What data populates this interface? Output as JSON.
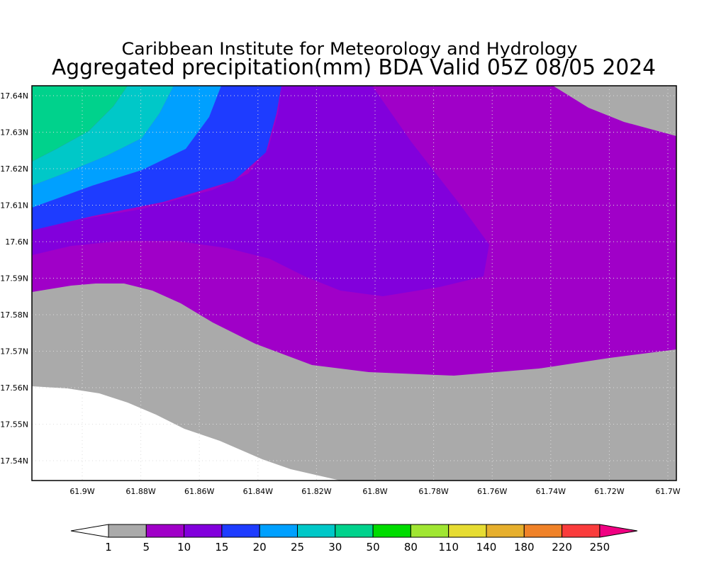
{
  "header": {
    "title": "Caribbean Institute for Meteorology and Hydrology",
    "subtitle": "Aggregated precipitation(mm) BDA Valid 05Z 08/05 2024"
  },
  "map": {
    "x_labels": [
      "61.9W",
      "61.88W",
      "61.86W",
      "61.84W",
      "61.82W",
      "61.8W",
      "61.78W",
      "61.76W",
      "61.74W",
      "61.72W",
      "61.7W"
    ],
    "y_labels": [
      "17.64N",
      "17.63N",
      "17.62N",
      "17.61N",
      "17.6N",
      "17.59N",
      "17.58N",
      "17.57N",
      "17.56N",
      "17.55N",
      "17.54N"
    ]
  },
  "colorbar": {
    "labels": [
      "1",
      "5",
      "10",
      "15",
      "20",
      "25",
      "30",
      "50",
      "80",
      "110",
      "140",
      "180",
      "220",
      "250"
    ],
    "colors": [
      "#ffffff",
      "#aaaaaa",
      "#a000c8",
      "#8200dc",
      "#1e3cff",
      "#00a0ff",
      "#00c8c8",
      "#00d28c",
      "#00dc00",
      "#a0e632",
      "#e6dc32",
      "#e6af2d",
      "#f08228",
      "#fa3c3c",
      "#f00082"
    ]
  }
}
